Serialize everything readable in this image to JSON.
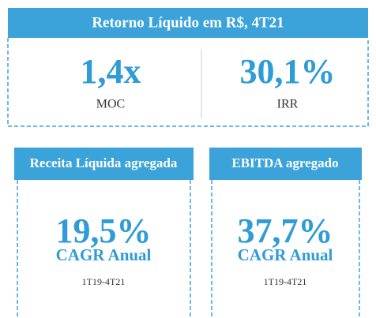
{
  "summary": {
    "title": "Retorno Líquido  em R$, 4T21",
    "metrics": [
      {
        "value": "1,4x",
        "label": "MOC"
      },
      {
        "value": "30,1%",
        "label": "IRR"
      }
    ]
  },
  "cards": [
    {
      "title": "Receita Líquida agregada",
      "value": "19,5%",
      "label": "CAGR Anual",
      "period": "1T19-4T21"
    },
    {
      "title": "EBITDA agregado",
      "value": "37,7%",
      "label": "CAGR Anual",
      "period": "1T19-4T21"
    }
  ]
}
